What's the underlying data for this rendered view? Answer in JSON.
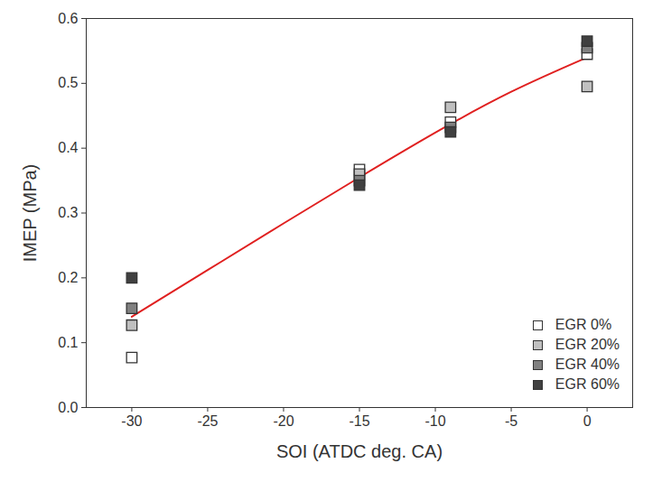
{
  "chart_data": {
    "type": "scatter",
    "x_label": "SOI (ATDC deg. CA)",
    "y_label": "IMEP (MPa)",
    "xlim": [
      -33,
      3
    ],
    "xticks": [
      -30,
      -25,
      -20,
      -15,
      -10,
      -5,
      0
    ],
    "ylim": [
      0,
      0.6
    ],
    "yticks": [
      {
        "value": 0,
        "label": "0.0"
      },
      0.1,
      0.2,
      0.3,
      0.4,
      0.5,
      0.6
    ],
    "marker": "square",
    "legend": "bottom-right",
    "grid": false,
    "series": [
      {
        "name": "EGR 0%",
        "color": "#ffffff",
        "x": [
          -30,
          -15,
          -9,
          0
        ],
        "values": [
          0.077,
          0.367,
          0.44,
          0.545
        ]
      },
      {
        "name": "EGR 20%",
        "color": "#c0c0c0",
        "x": [
          -30,
          -15,
          -9,
          0
        ],
        "values": [
          0.127,
          0.36,
          0.463,
          0.495
        ]
      },
      {
        "name": "EGR 40%",
        "color": "#808080",
        "x": [
          -30,
          -15,
          -9,
          0
        ],
        "values": [
          0.153,
          0.35,
          0.432,
          0.555
        ]
      },
      {
        "name": "EGR 60%",
        "color": "#404040",
        "x": [
          -30,
          -15,
          -9,
          0
        ],
        "values": [
          0.2,
          0.343,
          0.425,
          0.565
        ]
      }
    ],
    "fit": {
      "type": "line",
      "color": "#e02020",
      "x": [
        -30,
        -25,
        -20,
        -15,
        -10,
        -5,
        0
      ],
      "values": [
        0.14,
        0.212,
        0.284,
        0.355,
        0.424,
        0.487,
        0.54
      ]
    }
  }
}
